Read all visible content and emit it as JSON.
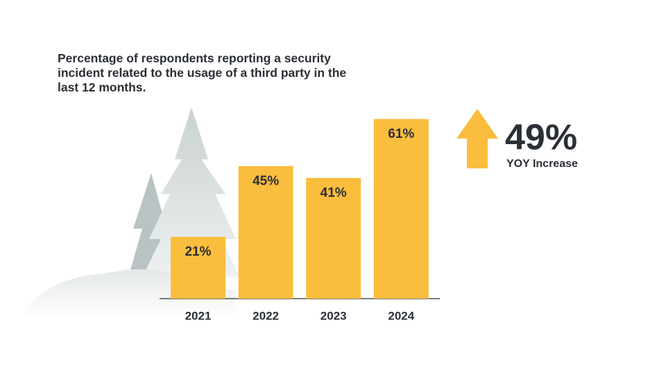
{
  "chart_data": {
    "type": "bar",
    "title": "Percentage of respondents reporting a security incident related to the usage of a third party in the last 12 months.",
    "categories": [
      "2021",
      "2022",
      "2023",
      "2024"
    ],
    "values": [
      21,
      45,
      41,
      61
    ],
    "value_labels": [
      "21%",
      "45%",
      "41%",
      "61%"
    ],
    "color": "#fbbd3d",
    "annotations": [
      {
        "text": "49%"
      },
      {
        "text": "YOY Increase"
      }
    ]
  }
}
